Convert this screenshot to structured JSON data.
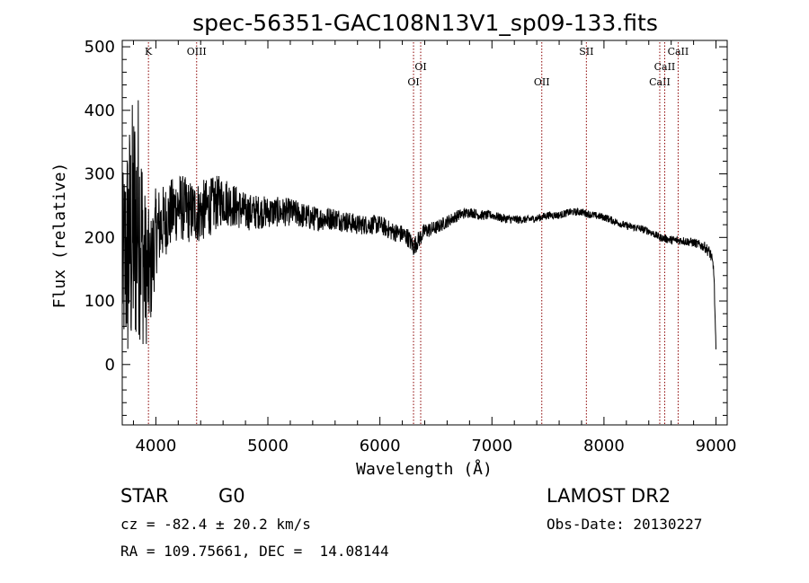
{
  "chart_data": {
    "type": "line",
    "title": "spec-56351-GAC108N13V1_sp09-133.fits",
    "xlabel": "Wavelength (Å)",
    "ylabel": "Flux (relative)",
    "xlim": [
      3700,
      9100
    ],
    "ylim": [
      -95,
      510
    ],
    "xticks": [
      4000,
      5000,
      6000,
      7000,
      8000,
      9000
    ],
    "yticks": [
      0,
      100,
      200,
      300,
      400,
      500
    ],
    "grid": false,
    "legend": "none",
    "line_color": "#000000",
    "marker_color": "#8b0000",
    "spectral_lines": [
      {
        "label": "K",
        "x": 3934,
        "label_row": "top"
      },
      {
        "label": "OIII",
        "x": 4364,
        "label_row": "top"
      },
      {
        "label": "OI",
        "x": 6300,
        "label_row": "low"
      },
      {
        "label": "OI",
        "x": 6364,
        "label_row": "mid"
      },
      {
        "label": "OII",
        "x": 7445,
        "label_row": "low"
      },
      {
        "label": "SII",
        "x": 7843,
        "label_row": "top"
      },
      {
        "label": "CaII",
        "x": 8498,
        "label_row": "low"
      },
      {
        "label": "CaII",
        "x": 8542,
        "label_row": "mid"
      },
      {
        "label": "CaII",
        "x": 8662,
        "label_row": "top"
      }
    ],
    "series": [
      {
        "x": [
          3700,
          3750,
          3800,
          3850,
          3900,
          3950,
          4000,
          4100,
          4200,
          4300,
          4400,
          4500,
          4600,
          4700,
          4800,
          5000,
          5200,
          5400,
          5600,
          5800,
          6000,
          6100,
          6200,
          6250,
          6300,
          6400,
          6500,
          6600,
          6700,
          6800,
          6900,
          7000,
          7100,
          7200,
          7300,
          7400,
          7500,
          7600,
          7700,
          7800,
          7900,
          8000,
          8100,
          8200,
          8300,
          8400,
          8500,
          8600,
          8700,
          8800,
          8900,
          8950,
          8980,
          9000
        ],
        "y": [
          150,
          180,
          210,
          240,
          150,
          140,
          210,
          230,
          250,
          240,
          240,
          250,
          260,
          250,
          240,
          240,
          240,
          230,
          230,
          220,
          220,
          210,
          205,
          200,
          185,
          210,
          215,
          225,
          235,
          240,
          235,
          235,
          230,
          228,
          228,
          230,
          235,
          235,
          240,
          240,
          235,
          232,
          225,
          218,
          215,
          210,
          200,
          196,
          195,
          192,
          185,
          175,
          150,
          20
        ],
        "noise": [
          140,
          200,
          220,
          200,
          130,
          90,
          70,
          55,
          55,
          50,
          50,
          45,
          40,
          35,
          30,
          25,
          22,
          20,
          18,
          16,
          15,
          15,
          15,
          15,
          15,
          13,
          11,
          10,
          9,
          8,
          8,
          7,
          7,
          7,
          6,
          6,
          6,
          6,
          6,
          6,
          6,
          6,
          6,
          6,
          6,
          6,
          6,
          7,
          7,
          7,
          8,
          10,
          10,
          10
        ]
      }
    ]
  },
  "footer": {
    "object_type": "STAR",
    "subclass": "G0",
    "survey": "LAMOST DR2",
    "redshift": "cz = -82.4 ± 20.2 km/s",
    "obs_date": "Obs-Date: 20130227",
    "coords": "RA = 109.75661, DEC =  14.08144"
  }
}
